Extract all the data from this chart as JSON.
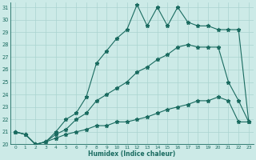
{
  "background_color": "#cceae7",
  "grid_color": "#aad4d0",
  "line_color": "#1a6b60",
  "xlabel": "Humidex (Indice chaleur)",
  "xlim": [
    -0.5,
    23.5
  ],
  "ylim": [
    20,
    31.4
  ],
  "yticks": [
    20,
    21,
    22,
    23,
    24,
    25,
    26,
    27,
    28,
    29,
    30,
    31
  ],
  "xticks": [
    0,
    1,
    2,
    3,
    4,
    5,
    6,
    7,
    8,
    9,
    10,
    11,
    12,
    13,
    14,
    15,
    16,
    17,
    18,
    19,
    20,
    21,
    22,
    23
  ],
  "series1_y": [
    21.0,
    20.8,
    20.0,
    20.2,
    21.0,
    22.0,
    22.5,
    23.8,
    26.5,
    27.5,
    28.5,
    29.2,
    31.2,
    29.5,
    31.0,
    29.5,
    31.0,
    29.8,
    29.5,
    29.5,
    29.2,
    29.2,
    29.2,
    21.8
  ],
  "series2_y": [
    21.0,
    20.8,
    20.0,
    20.2,
    20.8,
    21.2,
    22.0,
    22.5,
    23.5,
    24.0,
    24.5,
    25.0,
    25.8,
    26.2,
    26.8,
    27.2,
    27.8,
    28.0,
    27.8,
    27.8,
    27.8,
    25.0,
    23.5,
    21.8
  ],
  "series3_y": [
    21.0,
    20.8,
    20.0,
    20.2,
    20.5,
    20.8,
    21.0,
    21.2,
    21.5,
    21.5,
    21.8,
    21.8,
    22.0,
    22.2,
    22.5,
    22.8,
    23.0,
    23.2,
    23.5,
    23.5,
    23.8,
    23.5,
    21.8,
    21.8
  ]
}
